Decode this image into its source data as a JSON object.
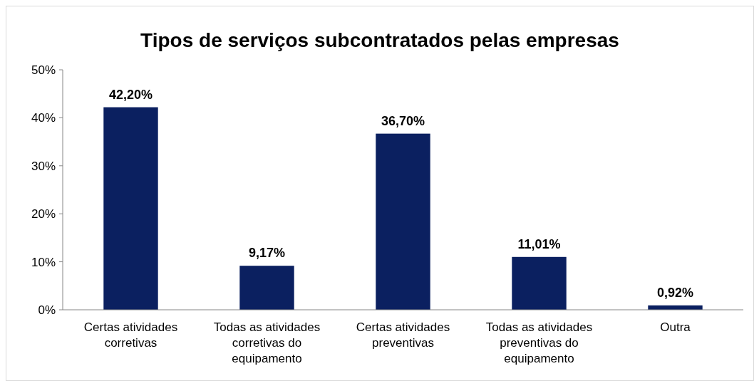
{
  "chart_data": {
    "type": "bar",
    "title": "Tipos de serviços subcontratados pelas empresas",
    "categories": [
      "Certas atividades corretivas",
      "Todas as atividades corretivas do equipamento",
      "Certas atividades preventivas",
      "Todas as atividades preventivas do equipamento",
      "Outra"
    ],
    "values": [
      42.2,
      9.17,
      36.7,
      11.01,
      0.92
    ],
    "value_labels": [
      "42,20%",
      "9,17%",
      "36,70%",
      "11,01%",
      "0,92%"
    ],
    "color": "#0b2060",
    "ylim": [
      0,
      50
    ],
    "yticks": [
      {
        "value": 0,
        "label": "0%"
      },
      {
        "value": 10,
        "label": "10%"
      },
      {
        "value": 20,
        "label": "20%"
      },
      {
        "value": 30,
        "label": "30%"
      },
      {
        "value": 40,
        "label": "40%"
      },
      {
        "value": 50,
        "label": "50%"
      }
    ],
    "grid": false
  }
}
